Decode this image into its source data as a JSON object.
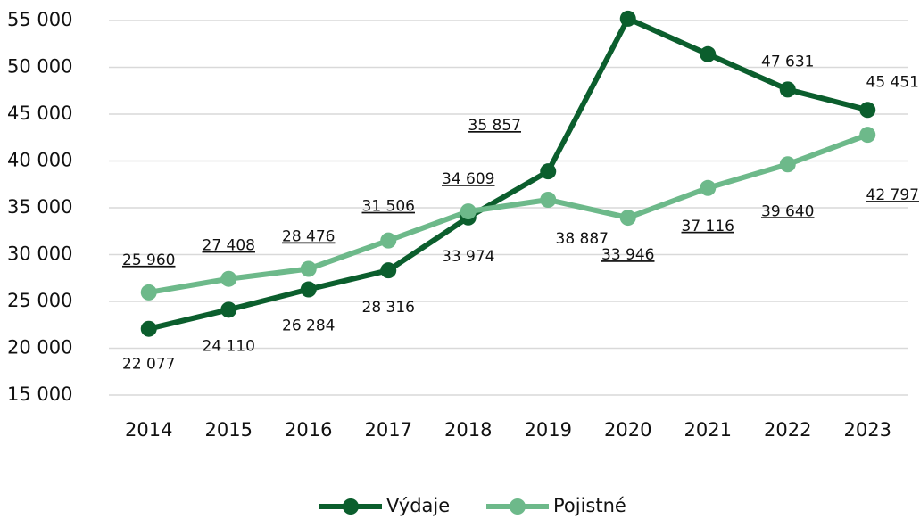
{
  "chart_data": {
    "type": "line",
    "categories": [
      "2014",
      "2015",
      "2016",
      "2017",
      "2018",
      "2019",
      "2020",
      "2021",
      "2022",
      "2023"
    ],
    "series": [
      {
        "name": "Výdaje",
        "color": "#0b5e2d",
        "values": [
          22077,
          24110,
          26284,
          28316,
          33974,
          38887,
          55200,
          51400,
          47631,
          45451
        ],
        "value_labels": [
          "22 077",
          "24 110",
          "26 284",
          "28 316",
          "33 974",
          "38 887",
          null,
          null,
          "47 631",
          "45 451"
        ]
      },
      {
        "name": "Pojistné",
        "color": "#6db98a",
        "values": [
          25960,
          27408,
          28476,
          31506,
          34609,
          35857,
          33946,
          37116,
          39640,
          42797
        ],
        "value_labels": [
          "25 960",
          "27 408",
          "28 476",
          "31 506",
          "34 609",
          "35 857",
          "33 946",
          "37 116",
          "39 640",
          "42 797"
        ]
      }
    ],
    "ylim": [
      15000,
      55000
    ],
    "yticks": [
      {
        "value": 15000,
        "label": "15 000"
      },
      {
        "value": 20000,
        "label": "20 000"
      },
      {
        "value": 25000,
        "label": "25 000"
      },
      {
        "value": 30000,
        "label": "30 000"
      },
      {
        "value": 35000,
        "label": "35 000"
      },
      {
        "value": 40000,
        "label": "40 000"
      },
      {
        "value": 45000,
        "label": "45 000"
      },
      {
        "value": 50000,
        "label": "50 000"
      },
      {
        "value": 55000,
        "label": "55 000"
      }
    ],
    "grid": true,
    "legend": "bottom"
  }
}
